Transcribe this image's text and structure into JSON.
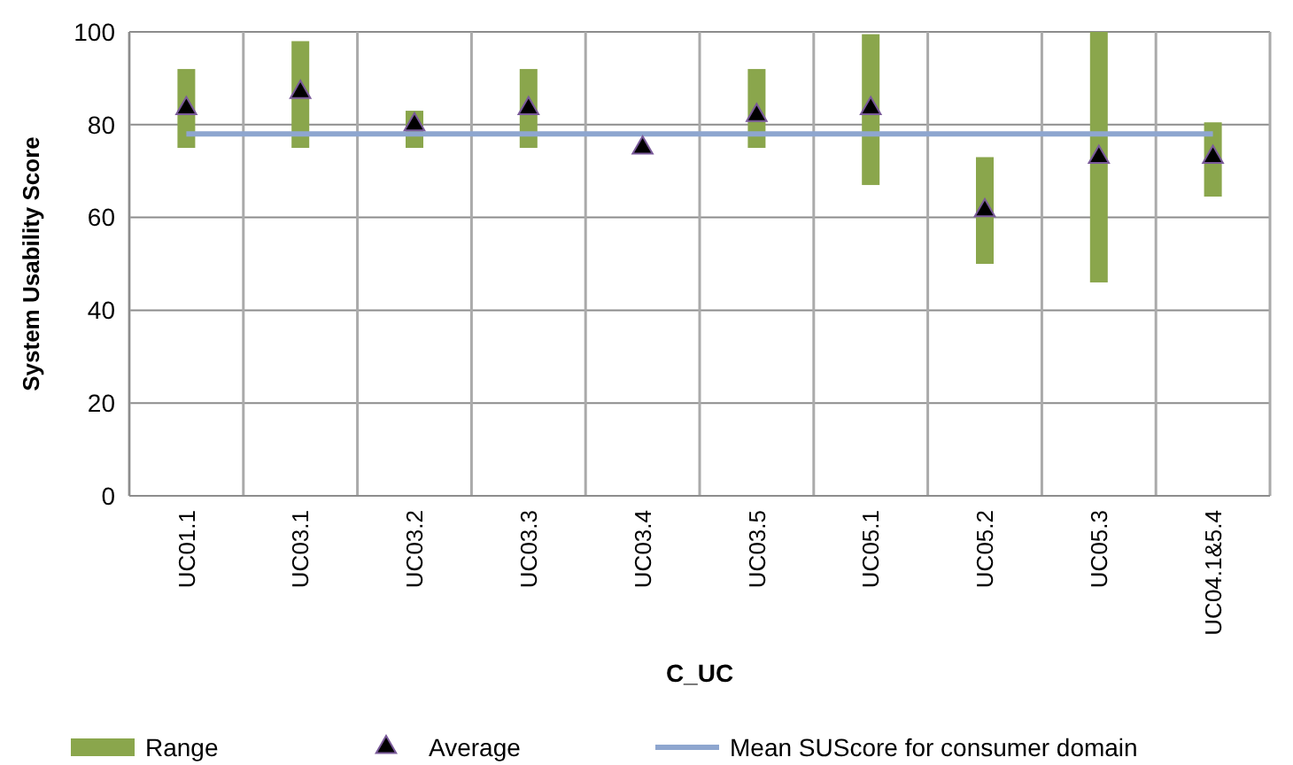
{
  "chart_data": {
    "type": "bar",
    "xlabel": "C_UC",
    "ylabel": "System Usability Score",
    "categories": [
      "UC01.1",
      "UC03.1",
      "UC03.2",
      "UC03.3",
      "UC03.4",
      "UC03.5",
      "UC05.1",
      "UC05.2",
      "UC05.3",
      "UC04.1&5.4"
    ],
    "series": [
      {
        "name": "Range",
        "color": "#8aa64c",
        "base": [
          75,
          75,
          75,
          75,
          null,
          75,
          67,
          50,
          46,
          64.5
        ],
        "values": [
          17,
          23,
          8,
          17,
          null,
          17,
          32.5,
          23,
          54,
          16
        ]
      },
      {
        "name": "Average",
        "type": "scatter",
        "color": "#000000",
        "marker": "triangle",
        "values": [
          83.5,
          87,
          80,
          83.5,
          75,
          82,
          83.5,
          61.5,
          73,
          73
        ]
      },
      {
        "name": "Mean SUScore for consumer domain",
        "type": "line",
        "color": "#8ea6cf",
        "values": [
          78,
          78,
          78,
          78,
          78,
          78,
          78,
          78,
          78,
          78
        ]
      }
    ],
    "ylim": [
      0,
      100
    ],
    "yticks": [
      0,
      20,
      40,
      60,
      80,
      100
    ],
    "grid": true,
    "legend": "bottom"
  }
}
